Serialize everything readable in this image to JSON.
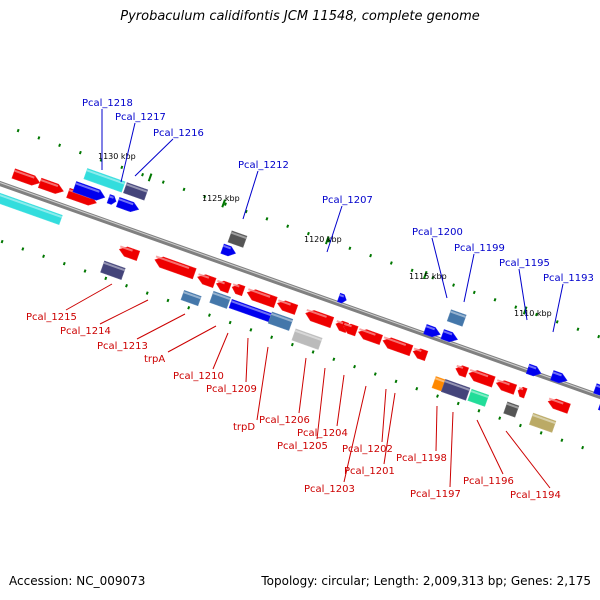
{
  "title": "Pyrobaculum calidifontis JCM 11548, complete genome",
  "footer": {
    "accession": "Accession: NC_009073",
    "stats": "Topology: circular; Length: 2,009,313 bp; Genes: 2,175"
  },
  "colors": {
    "backbone": "#808080",
    "forward_label": "#0000cc",
    "reverse_label": "#cc0000",
    "gene_red": "#ee0000",
    "gene_blue": "#0000ee",
    "gene_cyan": "#33dddd",
    "gene_slate": "#44447a",
    "gene_steel": "#4477aa",
    "gene_gray": "#555555",
    "gene_silver": "#bbbbbb",
    "gene_orange": "#ff8800",
    "gene_teal": "#22dd99",
    "gene_olive": "#bbaa66",
    "tick_green": "#007700"
  },
  "tick_labels": [
    "1130 kbp",
    "1125 kbp",
    "1120 kbp",
    "1115 kbp",
    "1110 kbp"
  ],
  "forward_labels": [
    "Pcal_1218",
    "Pcal_1217",
    "Pcal_1216",
    "Pcal_1212",
    "Pcal_1207",
    "Pcal_1200",
    "Pcal_1199",
    "Pcal_1195",
    "Pcal_1193"
  ],
  "reverse_labels": [
    "Pcal_1215",
    "Pcal_1214",
    "Pcal_1213",
    "trpA",
    "Pcal_1210",
    "Pcal_1209",
    "trpD",
    "Pcal_1206",
    "Pcal_1205",
    "Pcal_1204",
    "Pcal_1203",
    "Pcal_1202",
    "Pcal_1201",
    "Pcal_1198",
    "Pcal_1197",
    "Pcal_1196",
    "Pcal_1194"
  ]
}
